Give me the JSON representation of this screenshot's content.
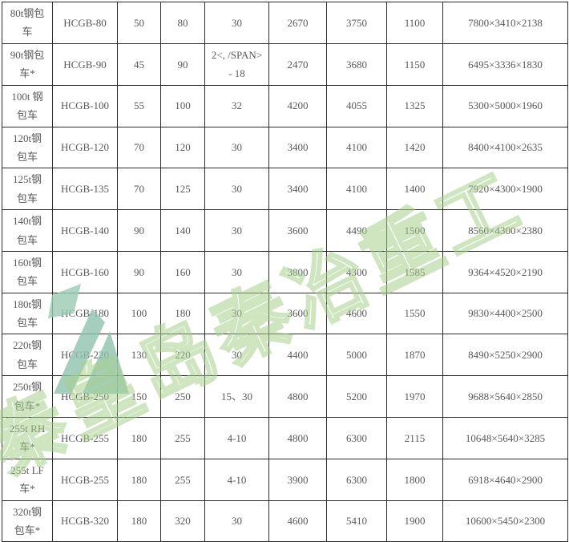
{
  "table": {
    "rows": [
      [
        "80t钢包\n车",
        "HCGB-80",
        "50",
        "80",
        "30",
        "2670",
        "3750",
        "1100",
        "7800×3410×2138"
      ],
      [
        "90t钢包\n车*",
        "HCGB-90",
        "45",
        "90",
        "2<, /SPAN>\n- 18",
        "2470",
        "3680",
        "1150",
        "6495×3336×1830"
      ],
      [
        "100t 钢\n包车",
        "HCGB-100",
        "55",
        "100",
        "32",
        "4200",
        "4055",
        "1325",
        "5300×5000×1960"
      ],
      [
        "120t钢\n包车",
        "HCGB-120",
        "70",
        "120",
        "30",
        "3400",
        "4100",
        "1420",
        "8400×4100×2635"
      ],
      [
        "125t钢\n包车",
        "HCGB-135",
        "70",
        "125",
        "30",
        "3400",
        "4100",
        "1400",
        "7920×4300×1900"
      ],
      [
        "140t钢\n包车",
        "HCGB-140",
        "90",
        "140",
        "30",
        "3600",
        "4490",
        "1500",
        "8560×4300×2380"
      ],
      [
        "160t钢\n包车",
        "HCGB-160",
        "90",
        "160",
        "30",
        "3800",
        "4300",
        "1585",
        "9364×4520×2190"
      ],
      [
        "180t钢\n包车",
        "HCGB-180",
        "100",
        "180",
        "30",
        "3600",
        "4600",
        "1550",
        "9830×4400×2500"
      ],
      [
        "220t钢\n包车",
        "HCGB-220",
        "130",
        "220",
        "30",
        "4400",
        "5000",
        "1870",
        "8490×5250×2900"
      ],
      [
        "250t钢\n包车*",
        "HCGB-250",
        "150",
        "250",
        "15、30",
        "4800",
        "5200",
        "1970",
        "9688×5640×2850"
      ],
      [
        "255t RH\n车*",
        "HCGB-255",
        "180",
        "255",
        "4-10",
        "4800",
        "6300",
        "2115",
        "10648×5640×3285"
      ],
      [
        "255t LF\n车*",
        "HCGB-255",
        "180",
        "255",
        "4-10",
        "3900",
        "6300",
        "1800",
        "6918×4640×2900"
      ],
      [
        "320t钢\n包车*",
        "HCGB-320",
        "180",
        "320",
        "30",
        "4600",
        "5410",
        "1900",
        "10600×5450×2300"
      ]
    ]
  },
  "watermark": {
    "text": "秦皇岛秦冶重工",
    "outline_color": "#a5d08c",
    "logo_color": "#8fc2ae"
  }
}
